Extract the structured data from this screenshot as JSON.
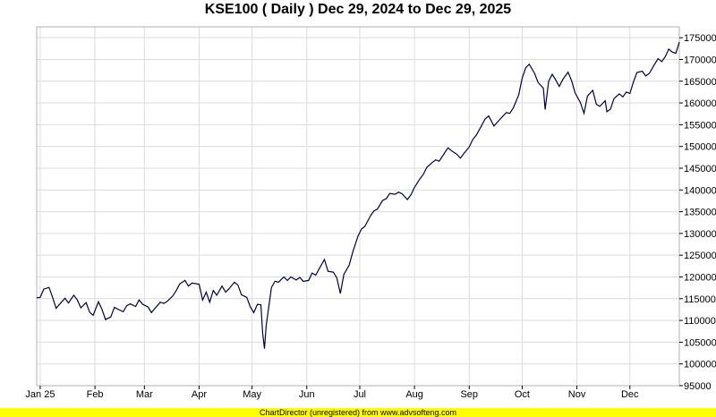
{
  "chart_data": {
    "type": "line",
    "title": "KSE100 ( Daily ) Dec 29, 2024 to Dec 29, 2025",
    "xlabel": "",
    "ylabel": "",
    "x_range": [
      "2024-12-30",
      "2025-12-29"
    ],
    "ylim": [
      95000,
      177500
    ],
    "y_ticks": [
      95000,
      100000,
      105000,
      110000,
      115000,
      120000,
      125000,
      130000,
      135000,
      140000,
      145000,
      150000,
      155000,
      160000,
      165000,
      170000,
      175000
    ],
    "x_ticks": [
      {
        "date": "2025-01-01",
        "label": "Jan 25"
      },
      {
        "date": "2025-02-01",
        "label": "Feb"
      },
      {
        "date": "2025-03-01",
        "label": "Mar"
      },
      {
        "date": "2025-04-01",
        "label": "Apr"
      },
      {
        "date": "2025-05-01",
        "label": "May"
      },
      {
        "date": "2025-06-01",
        "label": "Jun"
      },
      {
        "date": "2025-07-01",
        "label": "Jul"
      },
      {
        "date": "2025-08-01",
        "label": "Aug"
      },
      {
        "date": "2025-09-01",
        "label": "Sep"
      },
      {
        "date": "2025-10-01",
        "label": "Oct"
      },
      {
        "date": "2025-11-01",
        "label": "Nov"
      },
      {
        "date": "2025-12-01",
        "label": "Dec"
      }
    ],
    "grid": true,
    "line_color": "#000044",
    "series": [
      {
        "points": [
          [
            "2024-12-30",
            115200
          ],
          [
            "2025-01-01",
            115300
          ],
          [
            "2025-01-03",
            117200
          ],
          [
            "2025-01-06",
            117600
          ],
          [
            "2025-01-08",
            115300
          ],
          [
            "2025-01-10",
            112800
          ],
          [
            "2025-01-13",
            114200
          ],
          [
            "2025-01-15",
            115100
          ],
          [
            "2025-01-17",
            114000
          ],
          [
            "2025-01-20",
            115800
          ],
          [
            "2025-01-22",
            114700
          ],
          [
            "2025-01-24",
            112900
          ],
          [
            "2025-01-27",
            114100
          ],
          [
            "2025-01-29",
            111900
          ],
          [
            "2025-01-31",
            111200
          ],
          [
            "2025-02-03",
            114300
          ],
          [
            "2025-02-05",
            112500
          ],
          [
            "2025-02-07",
            110200
          ],
          [
            "2025-02-10",
            110800
          ],
          [
            "2025-02-12",
            113000
          ],
          [
            "2025-02-14",
            112600
          ],
          [
            "2025-02-17",
            112000
          ],
          [
            "2025-02-19",
            113400
          ],
          [
            "2025-02-21",
            113800
          ],
          [
            "2025-02-24",
            113200
          ],
          [
            "2025-02-26",
            114700
          ],
          [
            "2025-02-28",
            113700
          ],
          [
            "2025-03-03",
            113100
          ],
          [
            "2025-03-05",
            111800
          ],
          [
            "2025-03-07",
            112800
          ],
          [
            "2025-03-10",
            114200
          ],
          [
            "2025-03-12",
            113900
          ],
          [
            "2025-03-14",
            114400
          ],
          [
            "2025-03-17",
            115600
          ],
          [
            "2025-03-19",
            116800
          ],
          [
            "2025-03-21",
            118400
          ],
          [
            "2025-03-24",
            119200
          ],
          [
            "2025-03-26",
            117900
          ],
          [
            "2025-03-28",
            118600
          ],
          [
            "2025-04-01",
            118300
          ],
          [
            "2025-04-03",
            114700
          ],
          [
            "2025-04-05",
            116500
          ],
          [
            "2025-04-07",
            114200
          ],
          [
            "2025-04-09",
            116900
          ],
          [
            "2025-04-11",
            115800
          ],
          [
            "2025-04-14",
            117900
          ],
          [
            "2025-04-16",
            116500
          ],
          [
            "2025-04-18",
            117300
          ],
          [
            "2025-04-21",
            118800
          ],
          [
            "2025-04-23",
            118100
          ],
          [
            "2025-04-25",
            115900
          ],
          [
            "2025-04-28",
            115300
          ],
          [
            "2025-04-30",
            113100
          ],
          [
            "2025-05-02",
            111800
          ],
          [
            "2025-05-04",
            113700
          ],
          [
            "2025-05-06",
            113600
          ],
          [
            "2025-05-07",
            107000
          ],
          [
            "2025-05-08",
            103500
          ],
          [
            "2025-05-09",
            108800
          ],
          [
            "2025-05-12",
            117600
          ],
          [
            "2025-05-14",
            119000
          ],
          [
            "2025-05-16",
            118800
          ],
          [
            "2025-05-19",
            120000
          ],
          [
            "2025-05-21",
            119200
          ],
          [
            "2025-05-23",
            120000
          ],
          [
            "2025-05-26",
            119300
          ],
          [
            "2025-05-28",
            119900
          ],
          [
            "2025-05-30",
            119000
          ],
          [
            "2025-06-02",
            119200
          ],
          [
            "2025-06-04",
            120900
          ],
          [
            "2025-06-06",
            120400
          ],
          [
            "2025-06-09",
            122600
          ],
          [
            "2025-06-11",
            124000
          ],
          [
            "2025-06-13",
            121300
          ],
          [
            "2025-06-16",
            121100
          ],
          [
            "2025-06-18",
            119800
          ],
          [
            "2025-06-20",
            116200
          ],
          [
            "2025-06-22",
            120600
          ],
          [
            "2025-06-25",
            122700
          ],
          [
            "2025-06-27",
            125700
          ],
          [
            "2025-06-30",
            129400
          ],
          [
            "2025-07-02",
            131000
          ],
          [
            "2025-07-04",
            131700
          ],
          [
            "2025-07-07",
            134000
          ],
          [
            "2025-07-09",
            135200
          ],
          [
            "2025-07-11",
            135600
          ],
          [
            "2025-07-14",
            137600
          ],
          [
            "2025-07-16",
            138000
          ],
          [
            "2025-07-18",
            139200
          ],
          [
            "2025-07-21",
            139000
          ],
          [
            "2025-07-23",
            139500
          ],
          [
            "2025-07-25",
            139100
          ],
          [
            "2025-07-28",
            137800
          ],
          [
            "2025-07-30",
            138900
          ],
          [
            "2025-08-01",
            140600
          ],
          [
            "2025-08-04",
            142500
          ],
          [
            "2025-08-06",
            143600
          ],
          [
            "2025-08-08",
            145200
          ],
          [
            "2025-08-11",
            146300
          ],
          [
            "2025-08-13",
            146900
          ],
          [
            "2025-08-15",
            146600
          ],
          [
            "2025-08-18",
            148500
          ],
          [
            "2025-08-20",
            149700
          ],
          [
            "2025-08-22",
            149000
          ],
          [
            "2025-08-25",
            148200
          ],
          [
            "2025-08-27",
            147300
          ],
          [
            "2025-08-29",
            148400
          ],
          [
            "2025-09-01",
            149900
          ],
          [
            "2025-09-03",
            151600
          ],
          [
            "2025-09-05",
            152600
          ],
          [
            "2025-09-08",
            154800
          ],
          [
            "2025-09-10",
            156300
          ],
          [
            "2025-09-12",
            157000
          ],
          [
            "2025-09-15",
            154700
          ],
          [
            "2025-09-17",
            155600
          ],
          [
            "2025-09-19",
            156500
          ],
          [
            "2025-09-22",
            157800
          ],
          [
            "2025-09-24",
            157600
          ],
          [
            "2025-09-26",
            158900
          ],
          [
            "2025-09-29",
            161800
          ],
          [
            "2025-10-01",
            165700
          ],
          [
            "2025-10-03",
            168100
          ],
          [
            "2025-10-05",
            168900
          ],
          [
            "2025-10-08",
            166800
          ],
          [
            "2025-10-10",
            164700
          ],
          [
            "2025-10-13",
            163400
          ],
          [
            "2025-10-14",
            158500
          ],
          [
            "2025-10-16",
            165000
          ],
          [
            "2025-10-18",
            166600
          ],
          [
            "2025-10-20",
            165300
          ],
          [
            "2025-10-22",
            163800
          ],
          [
            "2025-10-24",
            165400
          ],
          [
            "2025-10-27",
            167100
          ],
          [
            "2025-10-29",
            165100
          ],
          [
            "2025-10-31",
            162300
          ],
          [
            "2025-11-03",
            160100
          ],
          [
            "2025-11-05",
            157600
          ],
          [
            "2025-11-07",
            161600
          ],
          [
            "2025-11-10",
            162900
          ],
          [
            "2025-11-12",
            159700
          ],
          [
            "2025-11-14",
            159200
          ],
          [
            "2025-11-17",
            160500
          ],
          [
            "2025-11-18",
            158000
          ],
          [
            "2025-11-20",
            158600
          ],
          [
            "2025-11-22",
            161000
          ],
          [
            "2025-11-25",
            162100
          ],
          [
            "2025-11-27",
            161400
          ],
          [
            "2025-11-29",
            162500
          ],
          [
            "2025-12-01",
            162200
          ],
          [
            "2025-12-03",
            164800
          ],
          [
            "2025-12-05",
            167000
          ],
          [
            "2025-12-08",
            167300
          ],
          [
            "2025-12-10",
            166200
          ],
          [
            "2025-12-12",
            166800
          ],
          [
            "2025-12-15",
            168900
          ],
          [
            "2025-12-17",
            170200
          ],
          [
            "2025-12-19",
            169500
          ],
          [
            "2025-12-21",
            170600
          ],
          [
            "2025-12-23",
            172400
          ],
          [
            "2025-12-25",
            171700
          ],
          [
            "2025-12-27",
            171400
          ],
          [
            "2025-12-29",
            174000
          ]
        ]
      }
    ]
  },
  "footer": {
    "text": "ChartDirector (unregistered) from www.advsofteng.com",
    "background": "#ffff00"
  }
}
